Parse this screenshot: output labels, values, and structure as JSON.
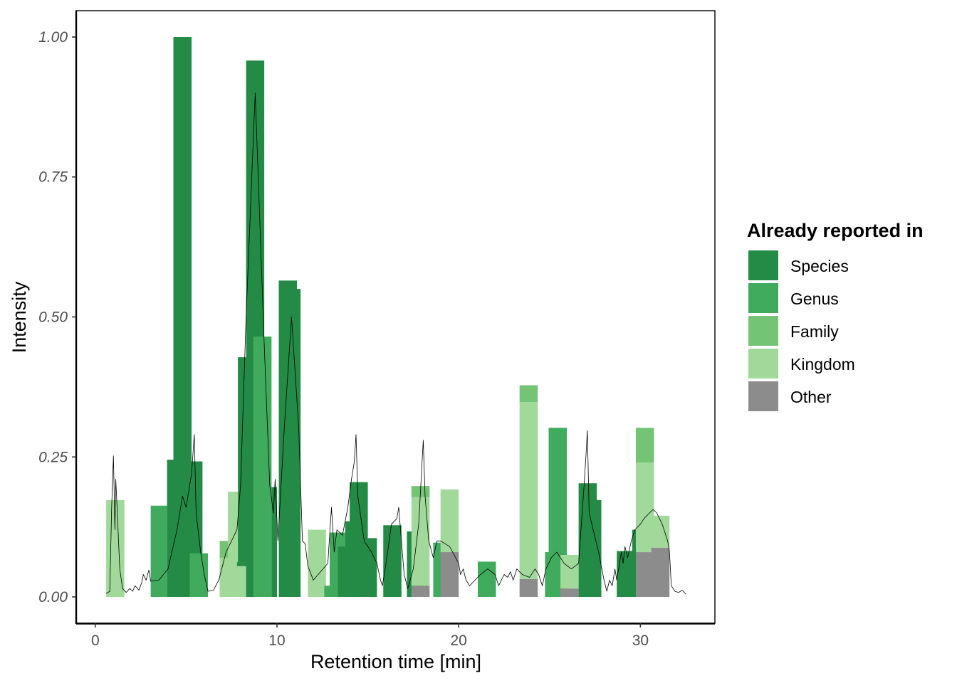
{
  "chart_data": {
    "type": "bar",
    "xlabel": "Retention time [min]",
    "ylabel": "Intensity",
    "xlim": [
      -1.05,
      34.1
    ],
    "ylim": [
      -0.047,
      1.047
    ],
    "xticks": [
      0,
      10,
      20,
      30
    ],
    "xtick_labels": [
      "0",
      "10",
      "20",
      "30"
    ],
    "yticks": [
      0,
      0.25,
      0.5,
      0.75,
      1.0
    ],
    "ytick_labels": [
      "0.00",
      "0.25",
      "0.50",
      "0.75",
      "1.00"
    ],
    "grid": false,
    "legend": {
      "title": "Already reported in",
      "position": "right",
      "items": [
        {
          "label": "Species",
          "color": "#238B45"
        },
        {
          "label": "Genus",
          "color": "#41AB5D"
        },
        {
          "label": "Family",
          "color": "#74C476"
        },
        {
          "label": "Kingdom",
          "color": "#A1D99B"
        },
        {
          "label": "Other",
          "color": "#8C8C8C"
        }
      ]
    },
    "colors": {
      "Species": "#238B45",
      "Genus": "#41AB5D",
      "Family": "#74C476",
      "Kingdom": "#A1D99B",
      "Other": "#8C8C8C"
    },
    "bars": [
      {
        "x0": 0.6,
        "x1": 1.6,
        "segments": [
          {
            "cat": "Kingdom",
            "y0": 0,
            "y1": 0.173
          }
        ]
      },
      {
        "x0": 3.05,
        "x1": 3.95,
        "segments": [
          {
            "cat": "Genus",
            "y0": 0,
            "y1": 0.163
          }
        ]
      },
      {
        "x0": 3.95,
        "x1": 4.45,
        "segments": [
          {
            "cat": "Species",
            "y0": 0,
            "y1": 0.245
          }
        ]
      },
      {
        "x0": 4.3,
        "x1": 5.3,
        "segments": [
          {
            "cat": "Species",
            "y0": 0,
            "y1": 1.0
          }
        ]
      },
      {
        "x0": 5.2,
        "x1": 5.9,
        "segments": [
          {
            "cat": "Species",
            "y0": 0,
            "y1": 0.242
          }
        ]
      },
      {
        "x0": 5.2,
        "x1": 6.2,
        "segments": [
          {
            "cat": "Genus",
            "y0": 0,
            "y1": 0.078
          }
        ]
      },
      {
        "x0": 6.85,
        "x1": 7.3,
        "segments": [
          {
            "cat": "Family",
            "y0": 0,
            "y1": 0.1
          }
        ]
      },
      {
        "x0": 6.85,
        "x1": 7.8,
        "segments": [
          {
            "cat": "Kingdom",
            "y0": 0,
            "y1": 0.07
          }
        ]
      },
      {
        "x0": 7.3,
        "x1": 8.3,
        "segments": [
          {
            "cat": "Kingdom",
            "y0": 0,
            "y1": 0.188
          }
        ]
      },
      {
        "x0": 7.8,
        "x1": 8.5,
        "segments": [
          {
            "cat": "Species",
            "y0": 0.055,
            "y1": 0.062
          }
        ]
      },
      {
        "x0": 7.85,
        "x1": 8.35,
        "segments": [
          {
            "cat": "Species",
            "y0": 0.062,
            "y1": 0.428
          }
        ]
      },
      {
        "x0": 8.3,
        "x1": 9.3,
        "segments": [
          {
            "cat": "Species",
            "y0": 0,
            "y1": 0.958
          }
        ]
      },
      {
        "x0": 8.7,
        "x1": 9.7,
        "segments": [
          {
            "cat": "Genus",
            "y0": 0,
            "y1": 0.465
          }
        ]
      },
      {
        "x0": 9.7,
        "x1": 10.0,
        "segments": [
          {
            "cat": "Species",
            "y0": 0,
            "y1": 0.196
          }
        ]
      },
      {
        "x0": 10.1,
        "x1": 11.1,
        "segments": [
          {
            "cat": "Species",
            "y0": 0,
            "y1": 0.565
          }
        ]
      },
      {
        "x0": 10.3,
        "x1": 11.3,
        "segments": [
          {
            "cat": "Species",
            "y0": 0,
            "y1": 0.55
          }
        ]
      },
      {
        "x0": 11.7,
        "x1": 12.7,
        "segments": [
          {
            "cat": "Kingdom",
            "y0": 0,
            "y1": 0.12
          }
        ]
      },
      {
        "x0": 12.6,
        "x1": 13.4,
        "segments": [
          {
            "cat": "Genus",
            "y0": 0,
            "y1": 0.02
          }
        ]
      },
      {
        "x0": 12.9,
        "x1": 13.75,
        "segments": [
          {
            "cat": "Genus",
            "y0": 0,
            "y1": 0.115
          }
        ]
      },
      {
        "x0": 13.35,
        "x1": 14.35,
        "segments": [
          {
            "cat": "Species",
            "y0": 0,
            "y1": 0.09
          }
        ]
      },
      {
        "x0": 13.75,
        "x1": 14.75,
        "segments": [
          {
            "cat": "Species",
            "y0": 0,
            "y1": 0.135
          }
        ]
      },
      {
        "x0": 14.0,
        "x1": 15.0,
        "segments": [
          {
            "cat": "Species",
            "y0": 0,
            "y1": 0.205
          }
        ]
      },
      {
        "x0": 14.6,
        "x1": 15.5,
        "segments": [
          {
            "cat": "Species",
            "y0": 0,
            "y1": 0.105
          }
        ]
      },
      {
        "x0": 15.85,
        "x1": 16.85,
        "segments": [
          {
            "cat": "Species",
            "y0": 0,
            "y1": 0.128
          }
        ]
      },
      {
        "x0": 17.15,
        "x1": 17.8,
        "segments": [
          {
            "cat": "Species",
            "y0": 0,
            "y1": 0.117
          }
        ]
      },
      {
        "x0": 17.25,
        "x1": 18.25,
        "segments": [
          {
            "cat": "Species",
            "y0": 0,
            "y1": 0.06
          }
        ]
      },
      {
        "x0": 17.4,
        "x1": 18.4,
        "segments": [
          {
            "cat": "Other",
            "y0": 0,
            "y1": 0.02
          },
          {
            "cat": "Kingdom",
            "y0": 0.02,
            "y1": 0.178
          },
          {
            "cat": "Family",
            "y0": 0.178,
            "y1": 0.198
          }
        ]
      },
      {
        "x0": 18.6,
        "x1": 19.05,
        "segments": [
          {
            "cat": "Genus",
            "y0": 0,
            "y1": 0.097
          }
        ]
      },
      {
        "x0": 19.0,
        "x1": 20.0,
        "segments": [
          {
            "cat": "Other",
            "y0": 0,
            "y1": 0.08
          },
          {
            "cat": "Kingdom",
            "y0": 0.08,
            "y1": 0.192
          }
        ]
      },
      {
        "x0": 21.05,
        "x1": 22.05,
        "segments": [
          {
            "cat": "Genus",
            "y0": 0,
            "y1": 0.063
          }
        ]
      },
      {
        "x0": 23.35,
        "x1": 24.35,
        "segments": [
          {
            "cat": "Other",
            "y0": 0,
            "y1": 0.032
          },
          {
            "cat": "Kingdom",
            "y0": 0.032,
            "y1": 0.348
          },
          {
            "cat": "Family",
            "y0": 0.348,
            "y1": 0.378
          }
        ]
      },
      {
        "x0": 24.75,
        "x1": 25.3,
        "segments": [
          {
            "cat": "Genus",
            "y0": 0,
            "y1": 0.08
          }
        ]
      },
      {
        "x0": 24.95,
        "x1": 25.95,
        "segments": [
          {
            "cat": "Genus",
            "y0": 0,
            "y1": 0.302
          }
        ]
      },
      {
        "x0": 25.6,
        "x1": 26.6,
        "segments": [
          {
            "cat": "Other",
            "y0": 0,
            "y1": 0.015
          },
          {
            "cat": "Kingdom",
            "y0": 0.015,
            "y1": 0.075
          }
        ]
      },
      {
        "x0": 26.6,
        "x1": 27.6,
        "segments": [
          {
            "cat": "Species",
            "y0": 0,
            "y1": 0.203
          }
        ]
      },
      {
        "x0": 27.1,
        "x1": 27.85,
        "segments": [
          {
            "cat": "Species",
            "y0": 0,
            "y1": 0.173
          }
        ]
      },
      {
        "x0": 28.7,
        "x1": 29.7,
        "segments": [
          {
            "cat": "Species",
            "y0": 0,
            "y1": 0.082
          }
        ]
      },
      {
        "x0": 29.55,
        "x1": 29.85,
        "segments": [
          {
            "cat": "Species",
            "y0": 0,
            "y1": 0.12
          }
        ]
      },
      {
        "x0": 29.75,
        "x1": 30.75,
        "segments": [
          {
            "cat": "Other",
            "y0": 0,
            "y1": 0.08
          },
          {
            "cat": "Kingdom",
            "y0": 0.08,
            "y1": 0.24
          },
          {
            "cat": "Family",
            "y0": 0.24,
            "y1": 0.302
          }
        ]
      },
      {
        "x0": 30.6,
        "x1": 31.6,
        "segments": [
          {
            "cat": "Other",
            "y0": 0,
            "y1": 0.088
          },
          {
            "cat": "Kingdom",
            "y0": 0.088,
            "y1": 0.145
          }
        ]
      }
    ],
    "chromatogram": {
      "color": "#000000",
      "points": [
        [
          0.6,
          0.006
        ],
        [
          0.8,
          0.01
        ],
        [
          0.9,
          0.16
        ],
        [
          1.0,
          0.252
        ],
        [
          1.08,
          0.12
        ],
        [
          1.13,
          0.21
        ],
        [
          1.2,
          0.16
        ],
        [
          1.35,
          0.05
        ],
        [
          1.5,
          0.015
        ],
        [
          1.7,
          0.008
        ],
        [
          1.9,
          0.015
        ],
        [
          2.05,
          0.01
        ],
        [
          2.2,
          0.02
        ],
        [
          2.4,
          0.012
        ],
        [
          2.55,
          0.025
        ],
        [
          2.65,
          0.04
        ],
        [
          2.8,
          0.03
        ],
        [
          2.95,
          0.048
        ],
        [
          3.05,
          0.028
        ],
        [
          3.5,
          0.03
        ],
        [
          4.0,
          0.05
        ],
        [
          4.5,
          0.12
        ],
        [
          4.8,
          0.18
        ],
        [
          5.0,
          0.16
        ],
        [
          5.3,
          0.22
        ],
        [
          5.45,
          0.29
        ],
        [
          5.55,
          0.15
        ],
        [
          5.8,
          0.08
        ],
        [
          6.0,
          0.04
        ],
        [
          6.2,
          0.01
        ],
        [
          6.5,
          0.012
        ],
        [
          6.8,
          0.03
        ],
        [
          7.2,
          0.08
        ],
        [
          7.8,
          0.12
        ],
        [
          8.0,
          0.2
        ],
        [
          8.3,
          0.5
        ],
        [
          8.8,
          0.9
        ],
        [
          9.3,
          0.45
        ],
        [
          9.6,
          0.2
        ],
        [
          9.8,
          0.15
        ],
        [
          9.9,
          0.21
        ],
        [
          10.05,
          0.1
        ],
        [
          10.4,
          0.3
        ],
        [
          10.8,
          0.5
        ],
        [
          11.2,
          0.3
        ],
        [
          11.4,
          0.1
        ],
        [
          11.55,
          0.095
        ],
        [
          11.7,
          0.055
        ],
        [
          12.0,
          0.03
        ],
        [
          12.8,
          0.06
        ],
        [
          13.0,
          0.16
        ],
        [
          13.15,
          0.08
        ],
        [
          13.3,
          0.12
        ],
        [
          13.6,
          0.11
        ],
        [
          13.9,
          0.16
        ],
        [
          14.1,
          0.21
        ],
        [
          14.25,
          0.24
        ],
        [
          14.35,
          0.29
        ],
        [
          14.45,
          0.18
        ],
        [
          14.8,
          0.1
        ],
        [
          15.2,
          0.08
        ],
        [
          15.5,
          0.06
        ],
        [
          15.7,
          0.03
        ],
        [
          15.8,
          0.02
        ],
        [
          16.0,
          0.06
        ],
        [
          16.3,
          0.13
        ],
        [
          16.6,
          0.14
        ],
        [
          16.7,
          0.16
        ],
        [
          16.8,
          0.12
        ],
        [
          17.0,
          0.04
        ],
        [
          17.2,
          0.015
        ],
        [
          17.5,
          0.05
        ],
        [
          17.8,
          0.13
        ],
        [
          17.95,
          0.22
        ],
        [
          18.05,
          0.28
        ],
        [
          18.15,
          0.18
        ],
        [
          18.35,
          0.1
        ],
        [
          18.6,
          0.07
        ],
        [
          18.8,
          0.1
        ],
        [
          19.0,
          0.1
        ],
        [
          19.5,
          0.09
        ],
        [
          20.0,
          0.06
        ],
        [
          20.1,
          0.04
        ],
        [
          20.25,
          0.05
        ],
        [
          20.4,
          0.03
        ],
        [
          20.6,
          0.02
        ],
        [
          20.9,
          0.03
        ],
        [
          21.2,
          0.04
        ],
        [
          21.6,
          0.05
        ],
        [
          22.0,
          0.04
        ],
        [
          22.2,
          0.02
        ],
        [
          22.5,
          0.04
        ],
        [
          22.7,
          0.035
        ],
        [
          22.85,
          0.045
        ],
        [
          23.0,
          0.03
        ],
        [
          23.2,
          0.05
        ],
        [
          23.5,
          0.04
        ],
        [
          23.9,
          0.035
        ],
        [
          24.2,
          0.05
        ],
        [
          24.4,
          0.04
        ],
        [
          24.6,
          0.02
        ],
        [
          24.8,
          0.05
        ],
        [
          25.1,
          0.07
        ],
        [
          25.4,
          0.08
        ],
        [
          25.8,
          0.06
        ],
        [
          26.2,
          0.05
        ],
        [
          26.6,
          0.06
        ],
        [
          26.9,
          0.2
        ],
        [
          27.0,
          0.25
        ],
        [
          27.08,
          0.297
        ],
        [
          27.18,
          0.15
        ],
        [
          27.4,
          0.12
        ],
        [
          27.7,
          0.08
        ],
        [
          28.0,
          0.03
        ],
        [
          28.15,
          0.01
        ],
        [
          28.3,
          0.03
        ],
        [
          28.45,
          0.02
        ],
        [
          28.6,
          0.05
        ],
        [
          28.7,
          0.03
        ],
        [
          28.85,
          0.06
        ],
        [
          28.95,
          0.08
        ],
        [
          29.05,
          0.06
        ],
        [
          29.15,
          0.09
        ],
        [
          29.3,
          0.07
        ],
        [
          29.5,
          0.1
        ],
        [
          29.7,
          0.12
        ],
        [
          30.0,
          0.13
        ],
        [
          30.2,
          0.14
        ],
        [
          30.5,
          0.15
        ],
        [
          30.7,
          0.156
        ],
        [
          30.9,
          0.15
        ],
        [
          31.2,
          0.13
        ],
        [
          31.5,
          0.1
        ],
        [
          31.6,
          0.08
        ],
        [
          31.7,
          0.02
        ],
        [
          31.9,
          0.01
        ],
        [
          32.1,
          0.008
        ],
        [
          32.3,
          0.012
        ],
        [
          32.5,
          0.005
        ]
      ]
    }
  }
}
